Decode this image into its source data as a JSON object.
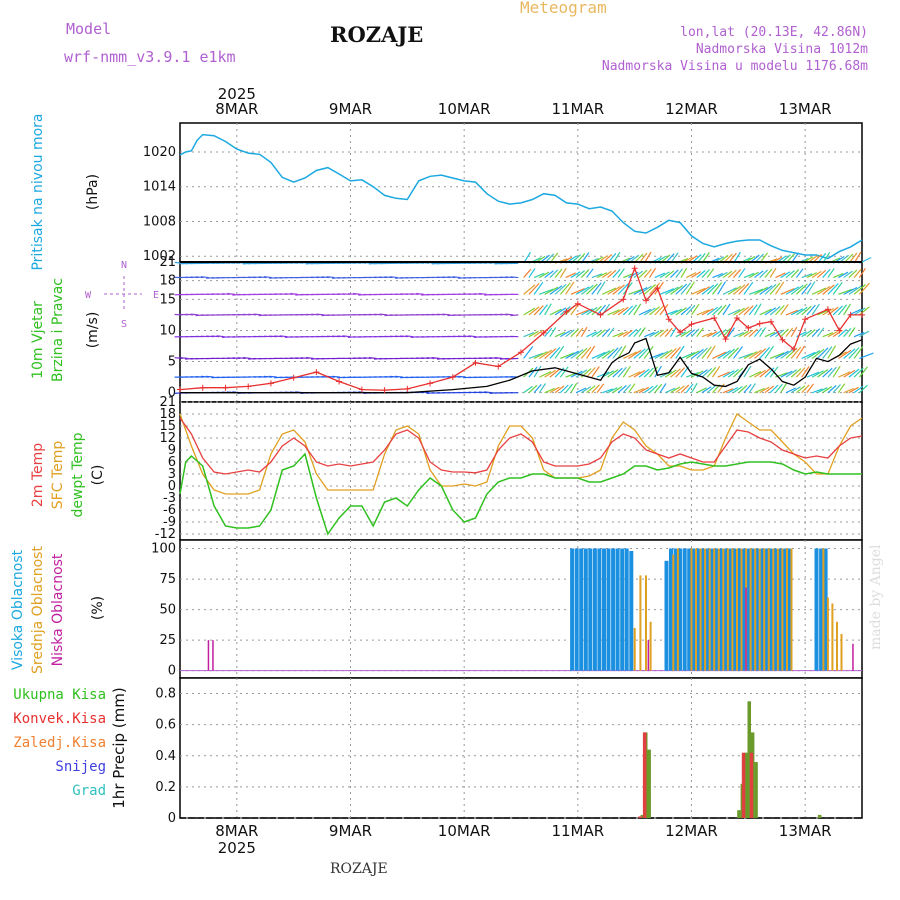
{
  "header": {
    "title": "ROZAJE",
    "meteogram_label": "Meteogram",
    "model_label": "Model",
    "model_name": "wrf-nmm_v3.9.1 e1km",
    "lonlat": "lon,lat (20.13E, 42.86N)",
    "altitude": "Nadmorska Visina 1012m",
    "model_altitude": "Nadmorska Visina u modelu 1176.68m"
  },
  "footer": {
    "station": "ROZAJE",
    "credit": "made by Angel"
  },
  "colors": {
    "pressure": "#1ca8e0",
    "wind_speed": "#e83030",
    "wind_gust": "#000000",
    "temp_2m": "#e84040",
    "temp_sfc": "#e0a020",
    "dewpoint": "#30c020",
    "cloud_high": "#1c90e0",
    "cloud_mid": "#e0a020",
    "cloud_low": "#c020a0",
    "precip_total": "#6a9a2a",
    "precip_conv": "#e04040"
  },
  "chart_data": [
    {
      "type": "line",
      "name": "pressure",
      "ylabel_lines": [
        "Pritisak na nivou mora",
        "(hPa)"
      ],
      "yticks": [
        "1020",
        "1014",
        "1008",
        "1002"
      ],
      "ylim": [
        1001,
        1025
      ],
      "x_days": [
        7.5,
        13.5
      ],
      "x": [
        7.5,
        7.55,
        7.6,
        7.65,
        7.7,
        7.8,
        7.9,
        8.0,
        8.1,
        8.2,
        8.3,
        8.4,
        8.5,
        8.6,
        8.7,
        8.8,
        8.9,
        9.0,
        9.1,
        9.2,
        9.3,
        9.4,
        9.5,
        9.6,
        9.7,
        9.8,
        9.9,
        10.0,
        10.1,
        10.2,
        10.3,
        10.4,
        10.5,
        10.6,
        10.7,
        10.8,
        10.9,
        11.0,
        11.1,
        11.2,
        11.3,
        11.4,
        11.5,
        11.6,
        11.7,
        11.8,
        11.9,
        12.0,
        12.1,
        12.2,
        12.3,
        12.4,
        12.5,
        12.6,
        12.7,
        12.8,
        12.9,
        13.0,
        13.1,
        13.2,
        13.3,
        13.4,
        13.5
      ],
      "y": [
        1019.5,
        1020,
        1020.2,
        1022,
        1023,
        1022.8,
        1021.8,
        1020.5,
        1019.8,
        1019.6,
        1018.2,
        1015.6,
        1014.8,
        1015.5,
        1016.8,
        1017.3,
        1016.2,
        1015,
        1015.2,
        1014,
        1012.5,
        1012,
        1011.8,
        1015,
        1015.8,
        1016,
        1015.5,
        1015,
        1014.8,
        1012.8,
        1011.5,
        1011,
        1011.2,
        1011.8,
        1012.8,
        1012.5,
        1011.2,
        1011,
        1010.2,
        1010.5,
        1009.8,
        1007.8,
        1006.3,
        1006,
        1007,
        1008.2,
        1007.8,
        1005.5,
        1004.2,
        1003.6,
        1004.2,
        1004.6,
        1004.8,
        1004.8,
        1003.8,
        1003,
        1002.6,
        1002.2,
        1002.2,
        1001.6,
        1002.8,
        1003.6,
        1004.8
      ]
    },
    {
      "type": "line",
      "name": "wind",
      "ylabel_lines": [
        "10m Vjetar",
        "Brzina i Pravac",
        "(m/s)"
      ],
      "compass": {
        "n": "N",
        "s": "S",
        "w": "W",
        "e": "E"
      },
      "yticks": [
        "21",
        "18",
        "15",
        "10",
        "5",
        "0"
      ],
      "ylim": [
        -1.5,
        21
      ],
      "series": [
        {
          "name": "speed",
          "x": [
            7.5,
            7.7,
            7.9,
            8.1,
            8.3,
            8.5,
            8.7,
            8.9,
            9.1,
            9.3,
            9.5,
            9.7,
            9.9,
            10.1,
            10.3,
            10.5,
            10.7,
            10.9,
            11.0,
            11.2,
            11.4,
            11.5,
            11.6,
            11.7,
            11.8,
            11.9,
            12.0,
            12.2,
            12.3,
            12.4,
            12.5,
            12.6,
            12.7,
            12.8,
            12.9,
            13.0,
            13.2,
            13.3,
            13.4,
            13.5
          ],
          "y": [
            0.5,
            0.8,
            0.8,
            1,
            1.5,
            2.4,
            3.3,
            1.8,
            0.5,
            0.4,
            0.6,
            1.5,
            2.5,
            4.8,
            4.2,
            6.5,
            9.6,
            13,
            14.3,
            12.5,
            15,
            20,
            14.8,
            16.8,
            11.8,
            9.7,
            11,
            12,
            8.6,
            12,
            10.4,
            11.1,
            11.4,
            8.5,
            7,
            11.8,
            13.4,
            10,
            12.5,
            12.5
          ]
        },
        {
          "name": "gust",
          "x": [
            7.5,
            8.0,
            8.5,
            9.0,
            9.5,
            9.9,
            10.2,
            10.4,
            10.6,
            10.8,
            11.0,
            11.2,
            11.3,
            11.35,
            11.45,
            11.5,
            11.6,
            11.7,
            11.8,
            11.9,
            12.0,
            12.1,
            12.2,
            12.3,
            12.4,
            12.5,
            12.6,
            12.7,
            12.8,
            12.9,
            13.0,
            13.1,
            13.2,
            13.3,
            13.4,
            13.5
          ],
          "y": [
            0,
            0,
            0,
            0,
            0,
            0.5,
            1,
            2,
            3.5,
            4,
            3,
            2,
            4.8,
            5.5,
            6.4,
            8,
            8.7,
            2.8,
            3.2,
            5.7,
            3.1,
            2.5,
            1.2,
            1,
            1.8,
            4.5,
            5.4,
            3.8,
            1.8,
            1.2,
            2.5,
            5.5,
            5,
            6,
            7.8,
            8.5
          ]
        }
      ]
    },
    {
      "type": "line",
      "name": "temperature",
      "ylabel_lines": [
        "2m Temp",
        "SFC Temp",
        "dewpt Temp",
        "(C)"
      ],
      "yticks": [
        "21",
        "18",
        "15",
        "12",
        "9",
        "6",
        "3",
        "0",
        "-3",
        "-6",
        "-9",
        "-12"
      ],
      "ylim": [
        -13.5,
        21
      ],
      "series": [
        {
          "name": "2m",
          "x": [
            7.5,
            7.6,
            7.7,
            7.8,
            7.9,
            8.0,
            8.1,
            8.2,
            8.3,
            8.4,
            8.5,
            8.6,
            8.7,
            8.8,
            8.9,
            9.0,
            9.1,
            9.2,
            9.3,
            9.4,
            9.5,
            9.6,
            9.7,
            9.8,
            9.9,
            10.0,
            10.1,
            10.2,
            10.3,
            10.4,
            10.5,
            10.6,
            10.7,
            10.8,
            10.9,
            11.0,
            11.1,
            11.2,
            11.3,
            11.4,
            11.5,
            11.6,
            11.7,
            11.8,
            11.9,
            12.0,
            12.1,
            12.2,
            12.3,
            12.4,
            12.5,
            12.6,
            12.7,
            12.8,
            12.9,
            13.0,
            13.1,
            13.2,
            13.3,
            13.4,
            13.5
          ],
          "y": [
            17,
            13,
            7,
            3.5,
            3,
            3.5,
            4,
            3.5,
            6,
            10,
            12,
            10,
            6,
            5,
            5.5,
            5,
            5.5,
            6,
            9,
            13,
            14,
            12,
            6,
            4,
            3.5,
            3.5,
            3.3,
            4,
            9,
            12,
            13,
            11,
            6,
            5,
            5,
            5,
            5.5,
            7,
            11,
            13,
            12,
            9,
            8,
            7,
            8,
            7,
            6,
            6,
            10,
            14,
            13.5,
            12,
            11,
            9,
            8,
            7,
            7.5,
            7,
            10,
            12,
            12.5
          ]
        },
        {
          "name": "sfc",
          "x": [
            7.5,
            7.6,
            7.7,
            7.8,
            7.9,
            8.0,
            8.1,
            8.2,
            8.3,
            8.4,
            8.5,
            8.6,
            8.7,
            8.8,
            8.9,
            9.0,
            9.1,
            9.2,
            9.3,
            9.4,
            9.5,
            9.6,
            9.7,
            9.8,
            9.9,
            10.0,
            10.1,
            10.2,
            10.3,
            10.4,
            10.5,
            10.6,
            10.7,
            10.8,
            10.9,
            11.0,
            11.1,
            11.2,
            11.3,
            11.4,
            11.5,
            11.6,
            11.7,
            11.8,
            11.9,
            12.0,
            12.1,
            12.2,
            12.3,
            12.4,
            12.5,
            12.6,
            12.7,
            12.8,
            12.9,
            13.0,
            13.1,
            13.2,
            13.3,
            13.4,
            13.5
          ],
          "y": [
            18,
            10,
            3,
            -1,
            -2,
            -2,
            -2,
            -1,
            8,
            13,
            14,
            11,
            3,
            -1,
            -1,
            -1,
            -1,
            -1,
            8,
            14,
            15,
            13,
            4,
            0,
            0,
            0.5,
            0,
            1,
            10,
            15,
            15,
            12,
            4,
            2,
            2,
            2,
            2.5,
            4,
            12,
            16,
            14,
            10,
            8,
            5,
            5,
            4,
            4,
            5,
            12,
            18,
            16,
            14,
            14,
            11,
            8,
            6,
            3,
            3,
            10,
            15,
            17
          ]
        },
        {
          "name": "dewpt",
          "x": [
            7.5,
            7.55,
            7.6,
            7.7,
            7.8,
            7.9,
            8.0,
            8.1,
            8.2,
            8.3,
            8.4,
            8.5,
            8.6,
            8.7,
            8.8,
            8.9,
            9.0,
            9.1,
            9.2,
            9.3,
            9.4,
            9.5,
            9.6,
            9.7,
            9.8,
            9.9,
            10.0,
            10.1,
            10.2,
            10.3,
            10.4,
            10.5,
            10.6,
            10.7,
            10.8,
            10.9,
            11.0,
            11.1,
            11.2,
            11.3,
            11.4,
            11.5,
            11.6,
            11.7,
            11.8,
            11.9,
            12.0,
            12.1,
            12.2,
            12.3,
            12.4,
            12.5,
            12.6,
            12.7,
            12.8,
            12.9,
            13.0,
            13.1,
            13.2,
            13.3,
            13.4,
            13.5
          ],
          "y": [
            -2,
            6,
            7.5,
            5,
            -5,
            -10,
            -10.5,
            -10.5,
            -10,
            -6,
            4,
            5,
            8,
            -3,
            -12,
            -8,
            -5,
            -5,
            -10,
            -4,
            -3,
            -5,
            -1,
            2,
            0,
            -6,
            -9,
            -8,
            -2,
            1,
            2,
            2,
            3,
            3,
            2,
            2,
            2,
            1,
            1,
            2,
            3,
            5,
            5,
            4,
            4.5,
            5.5,
            6,
            5.5,
            5,
            5,
            5.5,
            6,
            6,
            6,
            5.5,
            4,
            3,
            3.5,
            3,
            3,
            3,
            3
          ]
        }
      ]
    },
    {
      "type": "bar",
      "name": "cloud",
      "ylabel_lines": [
        "Visoka Oblacnost",
        "Srednja Oblacnost",
        "Niska Oblacnost",
        "(%)"
      ],
      "yticks": [
        "100",
        "75",
        "50",
        "25",
        "0"
      ],
      "ylim": [
        -6,
        107
      ],
      "series": [
        {
          "name": "high",
          "x": [
            10.95,
            10.99,
            11.03,
            11.07,
            11.11,
            11.15,
            11.19,
            11.23,
            11.27,
            11.31,
            11.35,
            11.39,
            11.43,
            11.47,
            11.78,
            11.82,
            11.86,
            11.9,
            11.94,
            11.98,
            12.02,
            12.06,
            12.1,
            12.14,
            12.18,
            12.22,
            12.26,
            12.3,
            12.34,
            12.38,
            12.42,
            12.46,
            12.5,
            12.54,
            12.58,
            12.62,
            12.66,
            12.7,
            12.74,
            12.78,
            12.82,
            12.86,
            13.1,
            13.14,
            13.18
          ],
          "y": [
            100,
            100,
            100,
            100,
            100,
            100,
            100,
            100,
            100,
            100,
            100,
            100,
            100,
            98,
            90,
            100,
            100,
            100,
            100,
            100,
            100,
            100,
            100,
            100,
            100,
            100,
            100,
            100,
            100,
            100,
            100,
            100,
            100,
            100,
            100,
            100,
            100,
            100,
            100,
            100,
            100,
            100,
            100,
            100,
            100
          ]
        },
        {
          "name": "mid",
          "x": [
            11.5,
            11.55,
            11.6,
            11.64,
            11.84,
            11.88,
            12.0,
            12.04,
            12.08,
            12.12,
            12.16,
            12.2,
            12.24,
            12.28,
            12.32,
            12.36,
            12.4,
            12.44,
            12.48,
            12.52,
            12.56,
            12.6,
            12.64,
            12.68,
            12.72,
            12.76,
            12.8,
            12.84,
            12.88,
            13.16,
            13.2,
            13.24,
            13.28,
            13.32
          ],
          "y": [
            35,
            78,
            78,
            40,
            95,
            100,
            100,
            100,
            100,
            100,
            100,
            100,
            100,
            100,
            100,
            100,
            100,
            100,
            100,
            100,
            100,
            100,
            100,
            100,
            100,
            100,
            100,
            100,
            100,
            100,
            60,
            55,
            40,
            30
          ]
        },
        {
          "name": "low",
          "x": [
            7.75,
            7.79,
            11.62,
            12.48,
            13.42
          ],
          "y": [
            25,
            25,
            25,
            68,
            22
          ]
        }
      ]
    },
    {
      "type": "bar",
      "name": "precip",
      "ylabel_lines": [
        "1hr Precip (mm)"
      ],
      "legend": [
        "Ukupna Kisa",
        "Konvek.Kisa",
        "Zaledj.Kisa",
        "Snijeg",
        "Grad"
      ],
      "yticks": [
        "0.8",
        "0.6",
        "0.4",
        "0.2",
        "0"
      ],
      "ylim": [
        0,
        0.9
      ],
      "series": [
        {
          "name": "total",
          "x": [
            11.57,
            11.6,
            11.63,
            12.42,
            12.45,
            12.48,
            12.51,
            12.54,
            12.57,
            13.13
          ],
          "y": [
            0.02,
            0.55,
            0.44,
            0.05,
            0.22,
            0.42,
            0.75,
            0.55,
            0.36,
            0.02
          ]
        },
        {
          "name": "conv",
          "x": [
            11.55,
            11.59,
            12.46,
            12.53
          ],
          "y": [
            0.01,
            0.55,
            0.42,
            0.42
          ]
        }
      ]
    }
  ],
  "x_axis": {
    "year": "2025",
    "day_labels": [
      "8MAR",
      "9MAR",
      "10MAR",
      "11MAR",
      "12MAR",
      "13MAR"
    ]
  }
}
